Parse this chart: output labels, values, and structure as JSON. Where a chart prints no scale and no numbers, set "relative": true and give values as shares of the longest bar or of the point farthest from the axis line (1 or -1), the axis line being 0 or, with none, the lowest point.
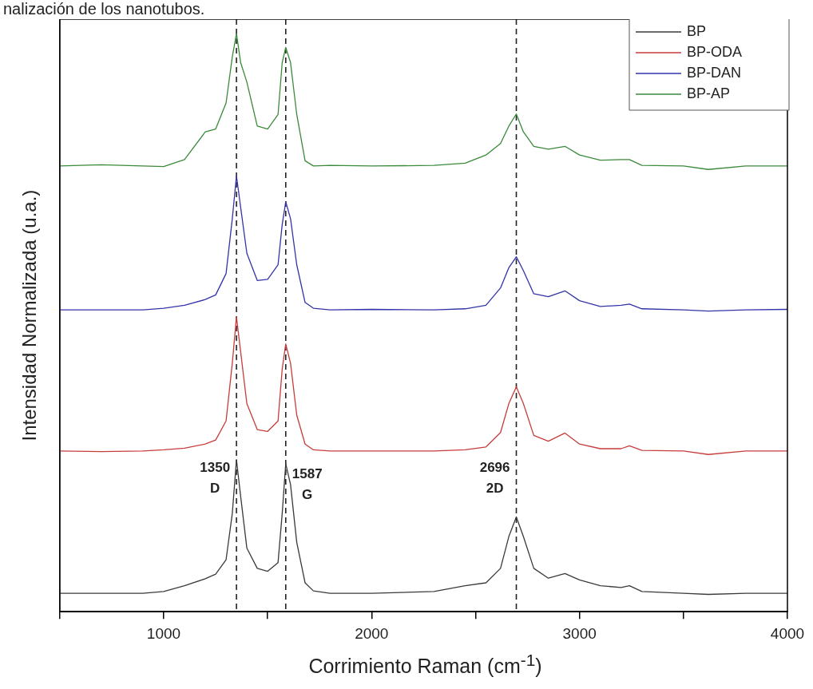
{
  "chart_data": {
    "type": "line",
    "relative": true,
    "xlabel": "Corrimiento Raman (cm$^{-1}$)",
    "ylabel": "Intensidad Normalizada (u.a.)",
    "annotations": [
      "nalización de los nanotubos."
    ],
    "xlim": [
      500,
      4000
    ],
    "xticks": [
      {
        "value": 500,
        "label": null
      },
      1000,
      {
        "value": 1500,
        "label": null
      },
      2000,
      {
        "value": 2500,
        "label": null
      },
      3000,
      {
        "value": 3500,
        "label": null
      },
      4000
    ],
    "x": [
      500,
      700,
      900,
      1000,
      1100,
      1200,
      1250,
      1300,
      1330,
      1350,
      1370,
      1400,
      1450,
      1500,
      1550,
      1570,
      1587,
      1610,
      1640,
      1680,
      1720,
      1800,
      2000,
      2300,
      2450,
      2550,
      2620,
      2660,
      2696,
      2730,
      2780,
      2850,
      2930,
      3000,
      3100,
      3200,
      3240,
      3300,
      3500,
      3620,
      3800,
      4000
    ],
    "series": [
      {
        "name": "BP",
        "color": "#3a3a3a",
        "values": [
          0.032,
          0.032,
          0.032,
          0.035,
          0.045,
          0.057,
          0.065,
          0.09,
          0.17,
          0.263,
          0.2,
          0.11,
          0.075,
          0.07,
          0.085,
          0.17,
          0.256,
          0.22,
          0.12,
          0.05,
          0.036,
          0.032,
          0.032,
          0.035,
          0.045,
          0.05,
          0.075,
          0.13,
          0.164,
          0.13,
          0.075,
          0.058,
          0.066,
          0.055,
          0.045,
          0.042,
          0.045,
          0.035,
          0.032,
          0.03,
          0.032,
          0.032
        ]
      },
      {
        "name": "BP-ODA",
        "color": "#c83c3c",
        "values": [
          0.278,
          0.277,
          0.278,
          0.28,
          0.283,
          0.29,
          0.297,
          0.33,
          0.43,
          0.51,
          0.45,
          0.36,
          0.315,
          0.312,
          0.33,
          0.42,
          0.463,
          0.43,
          0.34,
          0.29,
          0.28,
          0.278,
          0.278,
          0.278,
          0.28,
          0.285,
          0.31,
          0.36,
          0.389,
          0.36,
          0.305,
          0.295,
          0.309,
          0.29,
          0.282,
          0.282,
          0.287,
          0.279,
          0.278,
          0.272,
          0.278,
          0.278
        ]
      },
      {
        "name": "BP-DAN",
        "color": "#3333aa",
        "values": [
          0.522,
          0.522,
          0.522,
          0.525,
          0.53,
          0.54,
          0.548,
          0.585,
          0.68,
          0.754,
          0.7,
          0.62,
          0.573,
          0.575,
          0.6,
          0.67,
          0.709,
          0.68,
          0.6,
          0.535,
          0.525,
          0.522,
          0.523,
          0.522,
          0.524,
          0.53,
          0.56,
          0.595,
          0.614,
          0.59,
          0.55,
          0.545,
          0.555,
          0.538,
          0.528,
          0.53,
          0.532,
          0.524,
          0.522,
          0.52,
          0.522,
          0.523
        ]
      },
      {
        "name": "BP-AP",
        "color": "#3a8a3a",
        "values": [
          0.771,
          0.773,
          0.771,
          0.77,
          0.782,
          0.83,
          0.835,
          0.88,
          0.96,
          1.0,
          0.95,
          0.916,
          0.84,
          0.835,
          0.86,
          0.95,
          0.976,
          0.95,
          0.86,
          0.78,
          0.771,
          0.772,
          0.771,
          0.772,
          0.776,
          0.79,
          0.81,
          0.84,
          0.861,
          0.83,
          0.805,
          0.8,
          0.805,
          0.79,
          0.781,
          0.782,
          0.782,
          0.772,
          0.771,
          0.765,
          0.771,
          0.771
        ]
      }
    ],
    "ref_lines": [
      {
        "axis": "x",
        "value": 1350,
        "label": "1350\nD",
        "line_style": "dashed",
        "color": "#222222"
      },
      {
        "axis": "x",
        "value": 1587,
        "label": "1587\nG",
        "line_style": "dashed",
        "color": "#222222"
      },
      {
        "axis": "x",
        "value": 2696,
        "label": "2696\n2D",
        "line_style": "dashed",
        "color": "#222222"
      }
    ],
    "legend": "top right",
    "grid": false,
    "marker": "none",
    "line_style": "solid"
  }
}
